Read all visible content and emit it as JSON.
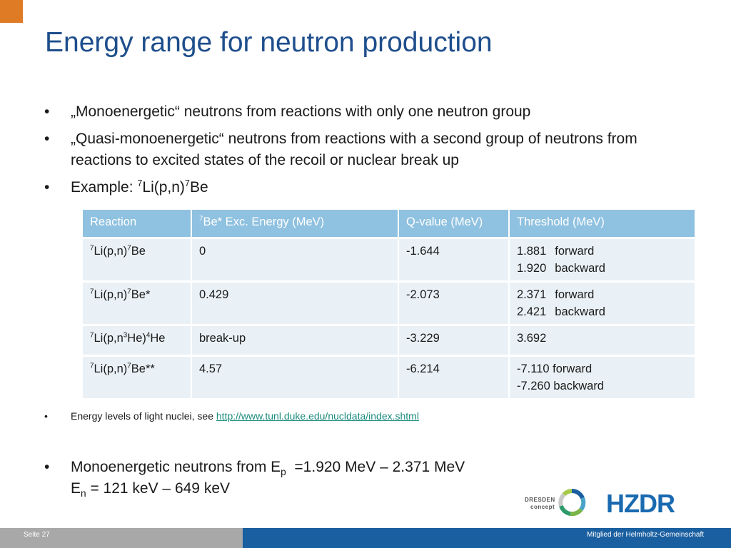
{
  "slide": {
    "title": "Energy range for neutron production",
    "bullets": [
      "„Monoenergetic“ neutrons from reactions with only one neutron group",
      "„Quasi-monoenergetic“ neutrons from reactions with a second group of neutrons from reactions to excited states of the recoil or nuclear break up",
      "Example: "
    ],
    "example": {
      "m1": "7",
      "t1": "Li(p,n)",
      "m2": "7",
      "t2": "Be"
    }
  },
  "table": {
    "headers": {
      "reaction": "Reaction",
      "exc_sup": "7",
      "exc": "Be* Exc. Energy (MeV)",
      "q": "Q-value (MeV)",
      "threshold": "Threshold (MeV)"
    },
    "rows": [
      {
        "r": {
          "m1": "7",
          "t1": "Li(p,n)",
          "m2": "7",
          "t2": "Be"
        },
        "exc": "0",
        "q": "-1.644",
        "th1": "1.881",
        "dir1": "forward",
        "th2": "1.920",
        "dir2": "backward"
      },
      {
        "r": {
          "m1": "7",
          "t1": "Li(p,n)",
          "m2": "7",
          "t2": "Be*"
        },
        "exc": "0.429",
        "q": "-2.073",
        "th1": "2.371",
        "dir1": "forward",
        "th2": "2.421",
        "dir2": "backward"
      },
      {
        "r": {
          "m1": "7",
          "t1": "Li(p,n",
          "m2": "3",
          "t2": "He)",
          "m3": "4",
          "t3": "He"
        },
        "exc": "break-up",
        "q": "-3.229",
        "th1": "3.692"
      },
      {
        "r": {
          "m1": "7",
          "t1": "Li(p,n)",
          "m2": "7",
          "t2": "Be**"
        },
        "exc": "4.57",
        "q": "-6.214",
        "th1": "-7.110 forward",
        "th2": "-7.260 backward"
      }
    ]
  },
  "note": {
    "text": "Energy levels of light nuclei, see ",
    "link": "http://www.tunl.duke.edu/nucldata/index.shtml"
  },
  "summary": {
    "l1_pre": "Monoenergetic neutrons from E",
    "l1_sub": "p",
    "l1_post": "  =1.920 MeV – 2.371 MeV",
    "l2_pre": "E",
    "l2_sub": "n",
    "l2_post": " = 121 keV – 649 keV"
  },
  "logos": {
    "dresden_line1": "DRESDEN",
    "dresden_line2": "concept",
    "hzdr": "HZDR"
  },
  "footer": {
    "page": "Seite 27",
    "member": "Mitglied der Helmholtz-Gemeinschaft"
  },
  "colors": {
    "accent": "#e07b25",
    "title": "#1e4e8c",
    "table_header": "#8fc1e0",
    "table_cell": "#eaf1f6",
    "footer_blue": "#1a5fa0",
    "link": "#1a8c7c"
  }
}
